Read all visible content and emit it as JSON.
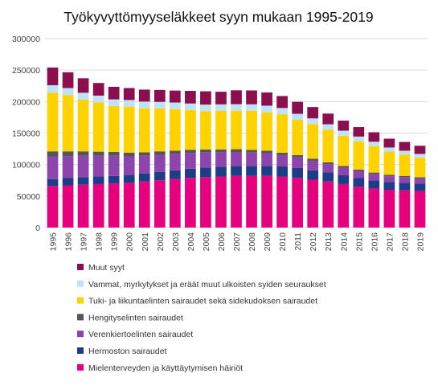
{
  "chart_data": {
    "type": "bar",
    "stacked": true,
    "title": "Työkyvyttömyyseläkkeet syyn mukaan 1995-2019",
    "xlabel": "",
    "ylabel": "",
    "ylim": [
      0,
      300000
    ],
    "yticks": [
      0,
      50000,
      100000,
      150000,
      200000,
      250000,
      300000
    ],
    "grid": true,
    "legend_position": "bottom",
    "categories": [
      "1995",
      "1996",
      "1997",
      "1998",
      "1999",
      "2000",
      "2001",
      "2002",
      "2003",
      "2004",
      "2005",
      "2006",
      "2007",
      "2008",
      "2009",
      "2010",
      "2011",
      "2012",
      "2013",
      "2014",
      "2015",
      "2016",
      "2017",
      "2018",
      "2019"
    ],
    "series": [
      {
        "name": "Mielenterveyden ja käyttäytymisen häiriöt",
        "color": "#e6007e",
        "values": [
          66000,
          67000,
          68000,
          69000,
          70000,
          71000,
          73000,
          75000,
          77000,
          79000,
          80000,
          81000,
          82000,
          82000,
          82000,
          81000,
          79000,
          76000,
          73000,
          69000,
          65000,
          62000,
          60000,
          59000,
          58000
        ]
      },
      {
        "name": "Hermoston sairaudet",
        "color": "#1f3c88",
        "values": [
          11000,
          11500,
          12000,
          12000,
          12000,
          12000,
          13000,
          13500,
          14000,
          14500,
          15000,
          15500,
          16000,
          16000,
          16000,
          16000,
          15500,
          15000,
          14500,
          14000,
          13500,
          13000,
          12500,
          12000,
          12000
        ]
      },
      {
        "name": "Verenkiertoelinten sairaudet",
        "color": "#8e44ad",
        "values": [
          36000,
          35000,
          34000,
          33000,
          32000,
          30000,
          28000,
          27000,
          26000,
          25000,
          24000,
          23000,
          22000,
          21000,
          20000,
          18000,
          17000,
          15000,
          13000,
          12000,
          11000,
          10000,
          9000,
          9000,
          8000
        ]
      },
      {
        "name": "Hengityselinten sairaudet",
        "color": "#555555",
        "values": [
          8000,
          7500,
          7000,
          6500,
          6000,
          6000,
          5500,
          5500,
          5000,
          5000,
          4800,
          4600,
          4400,
          4200,
          4000,
          3800,
          3600,
          3300,
          3000,
          2800,
          2500,
          2300,
          2100,
          2000,
          1900
        ]
      },
      {
        "name": "Tuki- ja liikuntaelinten sairaudet sekä sidekudoksen sairaudet",
        "color": "#ffd200",
        "values": [
          93000,
          89000,
          82000,
          78000,
          73000,
          73000,
          70000,
          68000,
          66000,
          63000,
          61000,
          61000,
          61000,
          62000,
          61000,
          61000,
          56000,
          55000,
          52000,
          48000,
          45000,
          42000,
          37000,
          34000,
          31000
        ]
      },
      {
        "name": "Vammat, myrkytykset ja eräät muut ulkoisten syiden seuraukset",
        "color": "#bde3f5",
        "values": [
          12000,
          11500,
          11000,
          11000,
          10500,
          10500,
          10500,
          10500,
          10500,
          10500,
          10500,
          10500,
          10500,
          10500,
          10500,
          10000,
          9500,
          9000,
          8500,
          8000,
          7500,
          7000,
          6500,
          6000,
          6000
        ]
      },
      {
        "name": "Muut syyt",
        "color": "#8b0e4e",
        "values": [
          28000,
          25000,
          23000,
          20000,
          20000,
          19000,
          19000,
          19000,
          19000,
          20000,
          21000,
          20000,
          22000,
          22000,
          21000,
          19000,
          19000,
          18000,
          17000,
          16000,
          15000,
          15000,
          14000,
          14000,
          13000
        ]
      }
    ]
  }
}
